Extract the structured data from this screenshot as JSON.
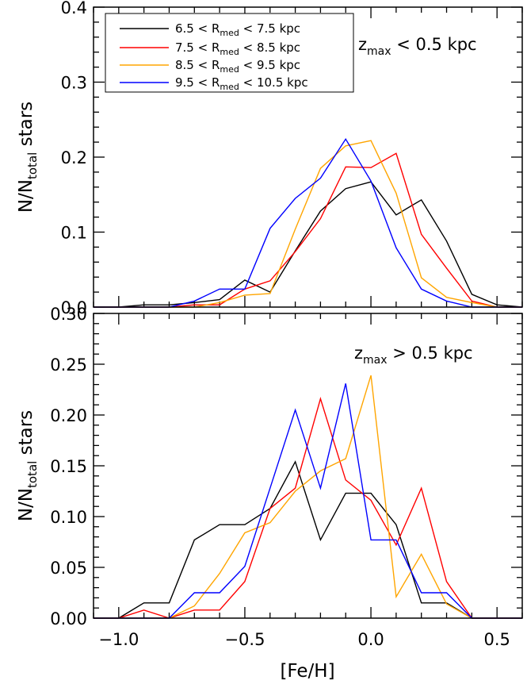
{
  "chart_data": [
    {
      "type": "line",
      "panel": "top",
      "annotation": {
        "main": "z",
        "sub": "max",
        "rest": " < 0.5 kpc"
      },
      "ylabel": {
        "main": "N/N",
        "sub": "total",
        "rest": " stars"
      },
      "xlabel": "",
      "xlim": [
        -1.1,
        0.6
      ],
      "ylim": [
        0.0,
        0.4
      ],
      "yticks": [
        "0.0",
        "0.1",
        "0.2",
        "0.3",
        "0.4"
      ],
      "legend": {
        "placement": "top-left",
        "entries": [
          {
            "pre": "6.5 < R",
            "sub": "med",
            "post": " < 7.5 kpc",
            "color": "#000000"
          },
          {
            "pre": "7.5 < R",
            "sub": "med",
            "post": " < 8.5 kpc",
            "color": "#ff0000"
          },
          {
            "pre": "8.5 < R",
            "sub": "med",
            "post": " < 9.5 kpc",
            "color": "#ffa500"
          },
          {
            "pre": "9.5 < R",
            "sub": "med",
            "post": " < 10.5 kpc",
            "color": "#0000ff"
          }
        ]
      },
      "x": [
        -1.1,
        -1.0,
        -0.9,
        -0.8,
        -0.7,
        -0.6,
        -0.5,
        -0.4,
        -0.3,
        -0.2,
        -0.1,
        0.0,
        0.1,
        0.2,
        0.3,
        0.4,
        0.5,
        0.6
      ],
      "series": [
        {
          "name": "6.5 < Rmed < 7.5 kpc",
          "color": "#000000",
          "values": [
            0.0,
            0.0,
            0.003,
            0.003,
            0.006,
            0.01,
            0.036,
            0.02,
            0.075,
            0.128,
            0.158,
            0.167,
            0.123,
            0.143,
            0.088,
            0.017,
            0.003,
            0.0
          ]
        },
        {
          "name": "7.5 < Rmed < 8.5 kpc",
          "color": "#ff0000",
          "values": [
            0.0,
            0.0,
            0.0,
            0.0,
            0.003,
            0.003,
            0.024,
            0.035,
            0.074,
            0.118,
            0.187,
            0.186,
            0.205,
            0.097,
            0.052,
            0.008,
            0.0,
            0.0
          ]
        },
        {
          "name": "8.5 < Rmed < 9.5 kpc",
          "color": "#ffa500",
          "values": [
            0.0,
            0.0,
            0.0,
            0.0,
            0.0,
            0.006,
            0.016,
            0.018,
            0.104,
            0.185,
            0.215,
            0.222,
            0.152,
            0.039,
            0.013,
            0.006,
            0.0,
            0.0
          ]
        },
        {
          "name": "9.5 < Rmed < 10.5 kpc",
          "color": "#0000ff",
          "values": [
            0.0,
            0.0,
            0.0,
            0.0,
            0.008,
            0.024,
            0.024,
            0.105,
            0.145,
            0.172,
            0.224,
            0.168,
            0.079,
            0.024,
            0.008,
            0.0,
            0.0,
            0.0
          ]
        }
      ]
    },
    {
      "type": "line",
      "panel": "bottom",
      "annotation": {
        "main": "z",
        "sub": "max",
        "rest": " > 0.5 kpc"
      },
      "ylabel": {
        "main": "N/N",
        "sub": "total",
        "rest": " stars"
      },
      "xlabel": "[Fe/H]",
      "xlim": [
        -1.1,
        0.6
      ],
      "ylim": [
        0.0,
        0.3
      ],
      "yticks": [
        "0.00",
        "0.05",
        "0.10",
        "0.15",
        "0.20",
        "0.25",
        "0.30"
      ],
      "xticks": [
        "−1.0",
        "−0.5",
        "0.0",
        "0.5"
      ],
      "xtick_values": [
        -1.0,
        -0.5,
        0.0,
        0.5
      ],
      "x": [
        -1.1,
        -1.0,
        -0.9,
        -0.8,
        -0.7,
        -0.6,
        -0.5,
        -0.4,
        -0.3,
        -0.2,
        -0.1,
        0.0,
        0.1,
        0.2,
        0.3,
        0.4,
        0.5,
        0.6
      ],
      "series": [
        {
          "name": "6.5 < Rmed < 7.5 kpc",
          "color": "#000000",
          "values": [
            0.0,
            0.0,
            0.015,
            0.015,
            0.077,
            0.092,
            0.092,
            0.108,
            0.154,
            0.077,
            0.123,
            0.123,
            0.092,
            0.015,
            0.015,
            0.0,
            0.0,
            0.0
          ]
        },
        {
          "name": "7.5 < Rmed < 8.5 kpc",
          "color": "#ff0000",
          "values": [
            0.0,
            0.0,
            0.008,
            0.0,
            0.008,
            0.008,
            0.036,
            0.108,
            0.128,
            0.216,
            0.136,
            0.116,
            0.072,
            0.128,
            0.036,
            0.0,
            0.0,
            0.0
          ]
        },
        {
          "name": "8.5 < Rmed < 9.5 kpc",
          "color": "#ffa500",
          "values": [
            0.0,
            0.0,
            0.0,
            0.0,
            0.012,
            0.044,
            0.084,
            0.094,
            0.125,
            0.145,
            0.157,
            0.239,
            0.021,
            0.063,
            0.014,
            0.0,
            0.0,
            0.0
          ]
        },
        {
          "name": "9.5 < Rmed < 10.5 kpc",
          "color": "#0000ff",
          "values": [
            0.0,
            0.0,
            0.0,
            0.0,
            0.025,
            0.025,
            0.051,
            0.128,
            0.205,
            0.128,
            0.231,
            0.077,
            0.077,
            0.025,
            0.025,
            0.0,
            0.0,
            0.0
          ]
        }
      ]
    }
  ]
}
